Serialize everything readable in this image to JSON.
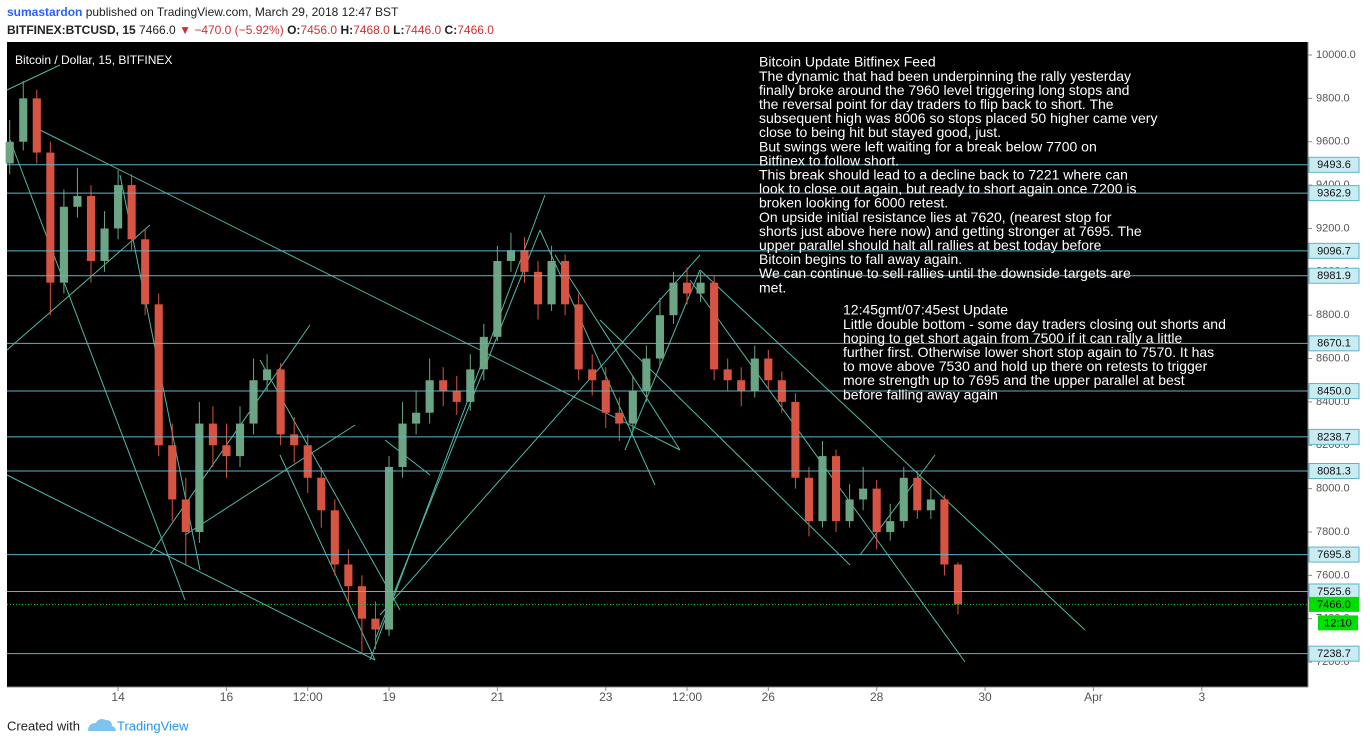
{
  "header": {
    "author": "sumastardon",
    "published": "published on TradingView.com, March 29, 2018 12:47 BST",
    "symbol": "BITFINEX:BTCUSD, 15",
    "price": "7466.0",
    "change": "−470.0 (−5.92%)",
    "ohlc": [
      {
        "label": "O:",
        "value": "7456.0"
      },
      {
        "label": "H:",
        "value": "7468.0"
      },
      {
        "label": "L:",
        "value": "7446.0"
      },
      {
        "label": "C:",
        "value": "7466.0"
      }
    ]
  },
  "footer": {
    "created": "Created with",
    "brand": "TradingView"
  },
  "chart_data": {
    "type": "candlestick",
    "title": "Bitcoin / Dollar, 15, BITFINEX",
    "up_color": "#6ba583",
    "down_color": "#d75442",
    "level_color": "#5fb3c4",
    "last_color": "#00e000",
    "xlim": [
      11.95,
      35.96
    ],
    "xticks": [
      14,
      16,
      {
        "value": 17.5,
        "label": "12:00"
      },
      19,
      21,
      23,
      {
        "value": 24.5,
        "label": "12:00"
      },
      26,
      28,
      30,
      {
        "value": 32,
        "label": "Apr"
      },
      {
        "value": 34,
        "label": "3"
      }
    ],
    "ylim": [
      7085,
      10060
    ],
    "yticks": [
      {
        "value": 7200,
        "label": "7200.0"
      },
      {
        "value": 7400,
        "label": "7400.0"
      },
      {
        "value": 7600,
        "label": "7600.0"
      },
      {
        "value": 7800,
        "label": "7800.0"
      },
      {
        "value": 8000,
        "label": "8000.0"
      },
      {
        "value": 8200,
        "label": "8200.0"
      },
      {
        "value": 8400,
        "label": "8400.0"
      },
      {
        "value": 8600,
        "label": "8600.0"
      },
      {
        "value": 8800,
        "label": "8800.0"
      },
      {
        "value": 9000,
        "label": "9000.0"
      },
      {
        "value": 9200,
        "label": "9200.0"
      },
      {
        "value": 9400,
        "label": "9400.0"
      },
      {
        "value": 9600,
        "label": "9600.0"
      },
      {
        "value": 9800,
        "label": "9800.0"
      },
      {
        "value": 10000,
        "label": "10000.0"
      }
    ],
    "grid": false,
    "levels": [
      {
        "value": 9493.6,
        "label": "9493.6"
      },
      {
        "value": 9362.9,
        "label": "9362.9"
      },
      {
        "value": 9096.7,
        "label": "9096.7"
      },
      {
        "value": 8981.9,
        "label": "8981.9"
      },
      {
        "value": 8670.1,
        "label": "8670.1"
      },
      {
        "value": 8450,
        "label": "8450.0"
      },
      {
        "value": 8238.7,
        "label": "8238.7"
      },
      {
        "value": 8081.3,
        "label": "8081.3"
      },
      {
        "value": 7695.8,
        "label": "7695.8"
      },
      {
        "value": 7525.6,
        "label": "7525.6"
      },
      {
        "value": 7238.7,
        "label": "7238.7"
      }
    ],
    "last": {
      "value": 7466,
      "label": "7466.0"
    },
    "countdown": "12:10",
    "x": [
      12.0,
      12.25,
      12.5,
      12.75,
      13.0,
      13.25,
      13.5,
      13.75,
      14.0,
      14.25,
      14.5,
      14.75,
      15.0,
      15.25,
      15.5,
      15.75,
      16.0,
      16.25,
      16.5,
      16.75,
      17.0,
      17.25,
      17.5,
      17.75,
      18.0,
      18.25,
      18.5,
      18.75,
      19.0,
      19.25,
      19.5,
      19.75,
      20.0,
      20.25,
      20.5,
      20.75,
      21.0,
      21.25,
      21.5,
      21.75,
      22.0,
      22.25,
      22.5,
      22.75,
      23.0,
      23.25,
      23.5,
      23.75,
      24.0,
      24.25,
      24.5,
      24.75,
      25.0,
      25.25,
      25.5,
      25.75,
      26.0,
      26.25,
      26.5,
      26.75,
      27.0,
      27.25,
      27.5,
      27.75,
      28.0,
      28.25,
      28.5,
      28.75,
      29.0,
      29.25,
      29.5
    ],
    "open": [
      9500,
      9600,
      9800,
      9550,
      8950,
      9300,
      9350,
      9050,
      9200,
      9400,
      9150,
      8850,
      8200,
      7950,
      7800,
      8300,
      8200,
      8150,
      8300,
      8500,
      8550,
      8250,
      8200,
      8050,
      7900,
      7650,
      7550,
      7400,
      7350,
      8100,
      8300,
      8350,
      8500,
      8450,
      8400,
      8550,
      8700,
      9050,
      9100,
      9000,
      8850,
      9050,
      8850,
      8550,
      8500,
      8350,
      8300,
      8450,
      8600,
      8800,
      8950,
      8900,
      8950,
      8550,
      8500,
      8450,
      8600,
      8500,
      8400,
      8050,
      7850,
      8150,
      7850,
      7950,
      8000,
      7800,
      7850,
      8050,
      7900,
      7950,
      7650
    ],
    "high": [
      9700,
      9880,
      9840,
      9600,
      9380,
      9480,
      9400,
      9280,
      9470,
      9450,
      9200,
      8900,
      8300,
      8050,
      8400,
      8380,
      8300,
      8380,
      8600,
      8620,
      8580,
      8330,
      8250,
      8100,
      7950,
      7720,
      7600,
      7480,
      8150,
      8400,
      8450,
      8600,
      8560,
      8520,
      8620,
      8760,
      9120,
      9180,
      9160,
      9050,
      9120,
      9080,
      8900,
      8620,
      8560,
      8420,
      8520,
      8660,
      8880,
      9000,
      9020,
      9000,
      8980,
      8600,
      8560,
      8660,
      8640,
      8540,
      8440,
      8100,
      8220,
      8180,
      8020,
      8100,
      8040,
      7930,
      8100,
      8080,
      8000,
      7970,
      7660
    ],
    "low": [
      9450,
      9560,
      9500,
      8800,
      8900,
      9250,
      8950,
      9000,
      9150,
      9100,
      8800,
      8150,
      7850,
      7650,
      7750,
      8100,
      8050,
      8100,
      8250,
      8450,
      8200,
      8120,
      7980,
      7820,
      7600,
      7480,
      7240,
      7260,
      7320,
      8050,
      8250,
      8300,
      8380,
      8340,
      8360,
      8500,
      8680,
      9000,
      8950,
      8780,
      8820,
      8800,
      8500,
      8430,
      8280,
      8220,
      8260,
      8400,
      8560,
      8760,
      8850,
      8860,
      8500,
      8450,
      8380,
      8420,
      8460,
      8350,
      8000,
      7780,
      7820,
      7800,
      7820,
      7900,
      7720,
      7760,
      7820,
      7860,
      7860,
      7600,
      7420
    ],
    "close": [
      9600,
      9800,
      9550,
      8950,
      9300,
      9350,
      9050,
      9200,
      9400,
      9150,
      8850,
      8200,
      7950,
      7800,
      8300,
      8200,
      8150,
      8300,
      8500,
      8550,
      8250,
      8200,
      8050,
      7900,
      7650,
      7550,
      7400,
      7350,
      8100,
      8300,
      8350,
      8500,
      8450,
      8400,
      8550,
      8700,
      9050,
      9100,
      9000,
      8850,
      9050,
      8850,
      8550,
      8500,
      8350,
      8300,
      8450,
      8600,
      8800,
      8950,
      8900,
      8950,
      8550,
      8500,
      8450,
      8600,
      8500,
      8400,
      8050,
      7850,
      8150,
      7850,
      7950,
      8000,
      7800,
      7850,
      8050,
      7900,
      7950,
      7650,
      7466
    ],
    "annotations": [
      {
        "lines": [
          "Bitcoin Update Bitfinex Feed",
          "The dynamic that had been underpinning the rally yesterday",
          "finally broke around the 7960 level triggering long stops and",
          "the reversal point for day traders to flip back to short. The",
          "subsequent high was 8006 so stops placed 50 higher came very",
          "close to being hit but stayed good, just.",
          "But swings were left waiting for a break below 7700 on",
          "Bitfinex to follow short.",
          "This break should lead to a decline back to 7221 where can",
          "look to close out again, but ready to short again once 7200 is",
          "broken looking for 6000 retest.",
          "On upside initial resistance lies at 7620, (nearest stop for",
          "shorts just above here now) and getting stronger at 7695. The",
          "upper parallel should halt all rallies at best today before",
          "Bitcoin begins to fall away again.",
          "We can continue to sell rallies until the downside targets are",
          "met."
        ]
      },
      {
        "lines": [
          "12:45gmt/07:45est Update",
          "Little double bottom - some day traders closing out shorts and",
          "hoping to get short again from 7500 if it can rally a little",
          "further first. Otherwise lower short stop again to 7570. It has",
          "to move above 7530 and hold up there on retests to trigger",
          "more strength up to 7695 and the upper parallel at best",
          "before falling away again"
        ]
      }
    ]
  }
}
